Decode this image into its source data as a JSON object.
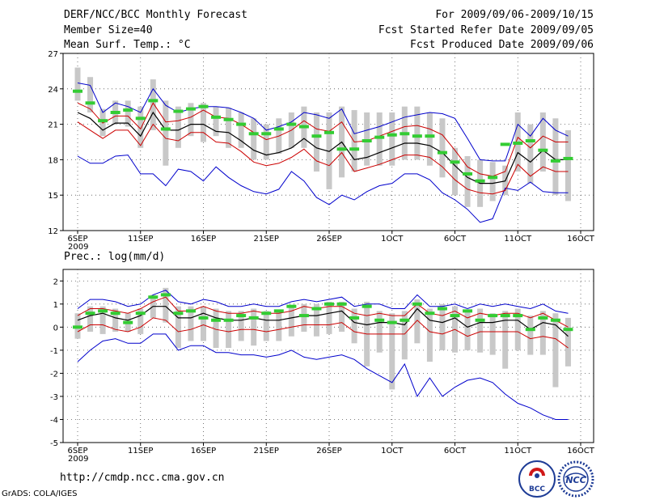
{
  "header": {
    "title": "DERF/NCC/BCC Monthly Forecast",
    "member_size": "Member Size=40",
    "variable": "Mean Surf. Temp.: °C",
    "period": "For 2009/09/06-2009/10/15",
    "started": "Fcst Started Refer Date 2009/09/05",
    "produced": "Fcst Produced Date 2009/09/06"
  },
  "footer": {
    "url": "http://cmdp.ncc.cma.gov.cn",
    "credit": "GrADS: COLA/IGES",
    "logo_left": "BCC",
    "logo_right": "NCC"
  },
  "colors": {
    "median": "#000000",
    "spread": "#cc0000",
    "envelope": "#0000cc",
    "obs": "#33cc33",
    "box": "#c8c8c8"
  },
  "chart_data": [
    {
      "type": "line",
      "title": "Mean Surf. Temp.: °C",
      "ylim": [
        12,
        27
      ],
      "yticks": [
        "12",
        "15",
        "18",
        "21",
        "24",
        "27"
      ],
      "xticks": [
        {
          "label": "6SEP",
          "day": 0,
          "sub": "2009"
        },
        {
          "label": "11SEP",
          "day": 5
        },
        {
          "label": "16SEP",
          "day": 10
        },
        {
          "label": "21SEP",
          "day": 15
        },
        {
          "label": "26SEP",
          "day": 20
        },
        {
          "label": "1OCT",
          "day": 25
        },
        {
          "label": "6OCT",
          "day": 30
        },
        {
          "label": "11OCT",
          "day": 35
        },
        {
          "label": "16OCT",
          "day": 40
        }
      ],
      "x": [
        0,
        1,
        2,
        3,
        4,
        5,
        6,
        7,
        8,
        9,
        10,
        11,
        12,
        13,
        14,
        15,
        16,
        17,
        18,
        19,
        20,
        21,
        22,
        23,
        24,
        25,
        26,
        27,
        28,
        29,
        30,
        31,
        32,
        33,
        34,
        35,
        36,
        37,
        38,
        39
      ],
      "series": [
        {
          "name": "max",
          "values": [
            24.5,
            24.3,
            22.0,
            22.8,
            22.5,
            22.0,
            24.0,
            22.6,
            22.0,
            22.3,
            22.5,
            22.5,
            22.4,
            22.0,
            21.5,
            20.5,
            20.8,
            21.2,
            22.0,
            21.8,
            21.5,
            22.3,
            20.2,
            20.5,
            20.8,
            21.2,
            21.6,
            21.8,
            22.0,
            21.9,
            21.5,
            19.8,
            18.0,
            17.9,
            17.9,
            21.0,
            20.0,
            21.5,
            20.5,
            20.0
          ]
        },
        {
          "name": "upper",
          "values": [
            22.8,
            22.3,
            21.1,
            21.7,
            21.7,
            20.6,
            22.8,
            21.2,
            21.3,
            21.6,
            22.2,
            21.6,
            21.5,
            21.0,
            20.3,
            19.7,
            20.0,
            20.5,
            21.3,
            20.6,
            20.4,
            21.2,
            19.5,
            19.6,
            20.0,
            20.4,
            20.8,
            20.9,
            20.6,
            20.1,
            18.8,
            17.4,
            16.8,
            16.6,
            17.0,
            19.9,
            19.0,
            20.0,
            19.5,
            19.5
          ]
        },
        {
          "name": "median",
          "values": [
            22.0,
            21.5,
            20.5,
            21.1,
            21.1,
            20.0,
            22.0,
            20.5,
            20.5,
            21.0,
            21.0,
            20.4,
            20.3,
            19.6,
            18.8,
            18.4,
            18.6,
            19.0,
            19.8,
            19.0,
            18.7,
            19.5,
            18.0,
            18.2,
            18.6,
            19.0,
            19.4,
            19.4,
            19.2,
            18.6,
            17.5,
            16.5,
            16.0,
            16.0,
            16.2,
            18.6,
            17.8,
            18.8,
            18.0,
            18.0
          ]
        },
        {
          "name": "lower",
          "values": [
            21.2,
            20.5,
            19.8,
            20.5,
            20.5,
            19.2,
            21.0,
            19.8,
            19.6,
            20.3,
            20.3,
            19.5,
            19.4,
            18.7,
            17.8,
            17.5,
            17.7,
            18.2,
            18.9,
            17.9,
            17.5,
            18.6,
            17.0,
            17.3,
            17.6,
            18.0,
            18.4,
            18.4,
            18.2,
            17.4,
            16.3,
            15.5,
            15.2,
            15.1,
            15.4,
            17.6,
            16.6,
            17.4,
            17.0,
            17.0
          ]
        },
        {
          "name": "min",
          "values": [
            18.3,
            17.7,
            17.7,
            18.3,
            18.4,
            16.8,
            16.8,
            15.8,
            17.2,
            17.0,
            16.2,
            17.4,
            16.5,
            15.8,
            15.3,
            15.1,
            15.5,
            17.0,
            16.2,
            14.8,
            14.2,
            15.0,
            14.6,
            15.3,
            15.8,
            16.0,
            16.8,
            16.8,
            16.3,
            15.2,
            14.6,
            13.8,
            12.7,
            13.0,
            15.6,
            15.4,
            16.1,
            15.3,
            15.2,
            15.2
          ]
        },
        {
          "name": "observed",
          "values": [
            23.8,
            22.8,
            21.3,
            22.0,
            22.2,
            21.5,
            23.0,
            20.6,
            22.1,
            22.3,
            22.5,
            21.6,
            21.4,
            21.0,
            20.2,
            20.2,
            20.6,
            21.0,
            20.8,
            20.0,
            20.3,
            18.9,
            18.9,
            19.6,
            19.9,
            20.1,
            20.2,
            20.0,
            20.0,
            18.6,
            17.8,
            16.8,
            16.2,
            16.5,
            19.3,
            19.4,
            19.6,
            18.8,
            17.9,
            18.1
          ]
        },
        {
          "name": "box_top",
          "values": [
            25.8,
            25.0,
            22.3,
            23.0,
            23.0,
            22.5,
            24.8,
            23.0,
            22.5,
            22.8,
            22.8,
            22.5,
            22.4,
            22.0,
            21.5,
            21.0,
            21.5,
            22.0,
            22.5,
            22.0,
            22.0,
            22.5,
            22.2,
            22.0,
            22.0,
            22.0,
            22.5,
            22.5,
            22.0,
            21.5,
            19.0,
            18.3,
            18.0,
            17.8,
            17.5,
            22.0,
            21.0,
            22.0,
            21.5,
            20.5
          ]
        },
        {
          "name": "box_bottom",
          "values": [
            23.0,
            22.0,
            20.0,
            21.0,
            20.8,
            19.0,
            20.5,
            17.5,
            19.0,
            20.0,
            19.5,
            20.0,
            19.0,
            19.0,
            18.0,
            18.0,
            18.5,
            19.0,
            19.0,
            17.0,
            15.5,
            16.5,
            17.0,
            17.5,
            17.5,
            17.5,
            18.0,
            18.0,
            17.5,
            16.5,
            15.0,
            14.0,
            14.0,
            14.5,
            15.0,
            17.0,
            16.0,
            17.0,
            15.0,
            14.5
          ]
        }
      ]
    },
    {
      "type": "line",
      "title": "Prec.: log(mm/d)",
      "ylim": [
        -5,
        2.5
      ],
      "yticks": [
        "-5",
        "-4",
        "-3",
        "-2",
        "-1",
        "0",
        "1",
        "2"
      ],
      "xticks": [
        {
          "label": "6SEP",
          "day": 0,
          "sub": "2009"
        },
        {
          "label": "11SEP",
          "day": 5
        },
        {
          "label": "16SEP",
          "day": 10
        },
        {
          "label": "21SEP",
          "day": 15
        },
        {
          "label": "26SEP",
          "day": 20
        },
        {
          "label": "1OCT",
          "day": 25
        },
        {
          "label": "6OCT",
          "day": 30
        },
        {
          "label": "11OCT",
          "day": 35
        },
        {
          "label": "16OCT",
          "day": 40
        }
      ],
      "x": [
        0,
        1,
        2,
        3,
        4,
        5,
        6,
        7,
        8,
        9,
        10,
        11,
        12,
        13,
        14,
        15,
        16,
        17,
        18,
        19,
        20,
        21,
        22,
        23,
        24,
        25,
        26,
        27,
        28,
        29,
        30,
        31,
        32,
        33,
        34,
        35,
        36,
        37,
        38,
        39
      ],
      "series": [
        {
          "name": "max",
          "values": [
            0.8,
            1.2,
            1.2,
            1.1,
            0.9,
            1.0,
            1.4,
            1.6,
            1.1,
            1.0,
            1.2,
            1.1,
            0.9,
            0.9,
            1.0,
            0.9,
            0.9,
            1.1,
            1.2,
            1.1,
            1.2,
            1.3,
            0.9,
            1.0,
            1.0,
            0.8,
            0.8,
            1.4,
            0.9,
            0.9,
            1.0,
            0.8,
            1.0,
            0.9,
            1.0,
            0.9,
            0.8,
            1.0,
            0.7,
            0.6
          ]
        },
        {
          "name": "upper",
          "values": [
            0.5,
            0.8,
            0.8,
            0.7,
            0.6,
            0.8,
            1.1,
            1.3,
            0.7,
            0.7,
            0.9,
            0.7,
            0.6,
            0.6,
            0.7,
            0.6,
            0.6,
            0.7,
            0.9,
            0.8,
            0.9,
            0.9,
            0.6,
            0.5,
            0.6,
            0.5,
            0.5,
            1.0,
            0.6,
            0.5,
            0.7,
            0.4,
            0.6,
            0.5,
            0.6,
            0.6,
            0.4,
            0.6,
            0.3,
            0.0
          ]
        },
        {
          "name": "median",
          "values": [
            0.3,
            0.5,
            0.6,
            0.4,
            0.3,
            0.5,
            0.9,
            0.9,
            0.4,
            0.4,
            0.6,
            0.4,
            0.3,
            0.3,
            0.4,
            0.3,
            0.3,
            0.4,
            0.5,
            0.5,
            0.6,
            0.7,
            0.2,
            0.1,
            0.2,
            0.2,
            0.1,
            0.8,
            0.3,
            0.2,
            0.4,
            0.0,
            0.2,
            0.2,
            0.3,
            0.3,
            -0.1,
            0.2,
            0.1,
            -0.4
          ]
        },
        {
          "name": "lower",
          "values": [
            -0.2,
            0.1,
            0.1,
            -0.1,
            -0.2,
            0.0,
            0.4,
            0.3,
            -0.2,
            -0.1,
            0.1,
            -0.1,
            -0.2,
            -0.1,
            -0.1,
            -0.2,
            -0.1,
            0.0,
            0.1,
            0.1,
            0.1,
            0.2,
            -0.2,
            -0.3,
            -0.3,
            -0.3,
            -0.3,
            0.3,
            -0.2,
            -0.3,
            -0.1,
            -0.4,
            -0.2,
            -0.2,
            -0.2,
            -0.2,
            -0.5,
            -0.4,
            -0.5,
            -0.9
          ]
        },
        {
          "name": "min",
          "values": [
            -1.5,
            -1.0,
            -0.6,
            -0.5,
            -0.7,
            -0.7,
            -0.3,
            -0.3,
            -1.0,
            -0.8,
            -0.8,
            -1.1,
            -1.1,
            -1.2,
            -1.2,
            -1.3,
            -1.2,
            -1.0,
            -1.3,
            -1.4,
            -1.3,
            -1.2,
            -1.4,
            -1.8,
            -2.1,
            -2.4,
            -1.6,
            -3.0,
            -2.2,
            -3.0,
            -2.6,
            -2.3,
            -2.2,
            -2.4,
            -2.9,
            -3.3,
            -3.5,
            -3.8,
            -4.0,
            -4.0
          ]
        },
        {
          "name": "observed",
          "values": [
            0.0,
            0.6,
            0.7,
            0.6,
            0.2,
            0.6,
            1.3,
            1.4,
            0.6,
            0.7,
            0.4,
            0.3,
            0.3,
            0.5,
            0.4,
            0.6,
            0.7,
            0.9,
            0.5,
            0.8,
            1.0,
            1.0,
            0.4,
            0.9,
            0.3,
            0.2,
            0.3,
            1.0,
            0.6,
            0.8,
            0.5,
            0.7,
            0.3,
            0.5,
            0.5,
            0.5,
            -0.1,
            0.4,
            0.3,
            -0.1
          ]
        },
        {
          "name": "box_top",
          "values": [
            0.6,
            0.9,
            0.9,
            0.8,
            0.6,
            0.8,
            1.4,
            1.7,
            0.9,
            0.9,
            0.9,
            0.8,
            0.7,
            0.7,
            0.8,
            0.7,
            0.7,
            0.9,
            1.0,
            1.0,
            1.1,
            1.1,
            0.8,
            1.1,
            0.7,
            0.6,
            0.7,
            1.2,
            0.8,
            1.0,
            0.9,
            0.7,
            0.8,
            0.6,
            0.7,
            0.8,
            0.5,
            0.7,
            0.6,
            0.4
          ]
        },
        {
          "name": "box_bottom",
          "values": [
            -0.5,
            -0.2,
            -0.3,
            -0.2,
            -0.2,
            -0.3,
            0.4,
            0.2,
            -0.9,
            -0.6,
            -0.6,
            -0.9,
            -0.9,
            -0.6,
            -0.8,
            -0.6,
            -0.6,
            -0.4,
            -0.2,
            -0.4,
            -0.3,
            -0.2,
            -0.7,
            -1.7,
            -1.1,
            -2.7,
            -1.4,
            -0.7,
            -1.5,
            -1.0,
            -1.1,
            -1.0,
            -1.1,
            -1.2,
            -1.8,
            -1.0,
            -1.2,
            -1.2,
            -2.6,
            -1.7
          ]
        }
      ]
    }
  ]
}
